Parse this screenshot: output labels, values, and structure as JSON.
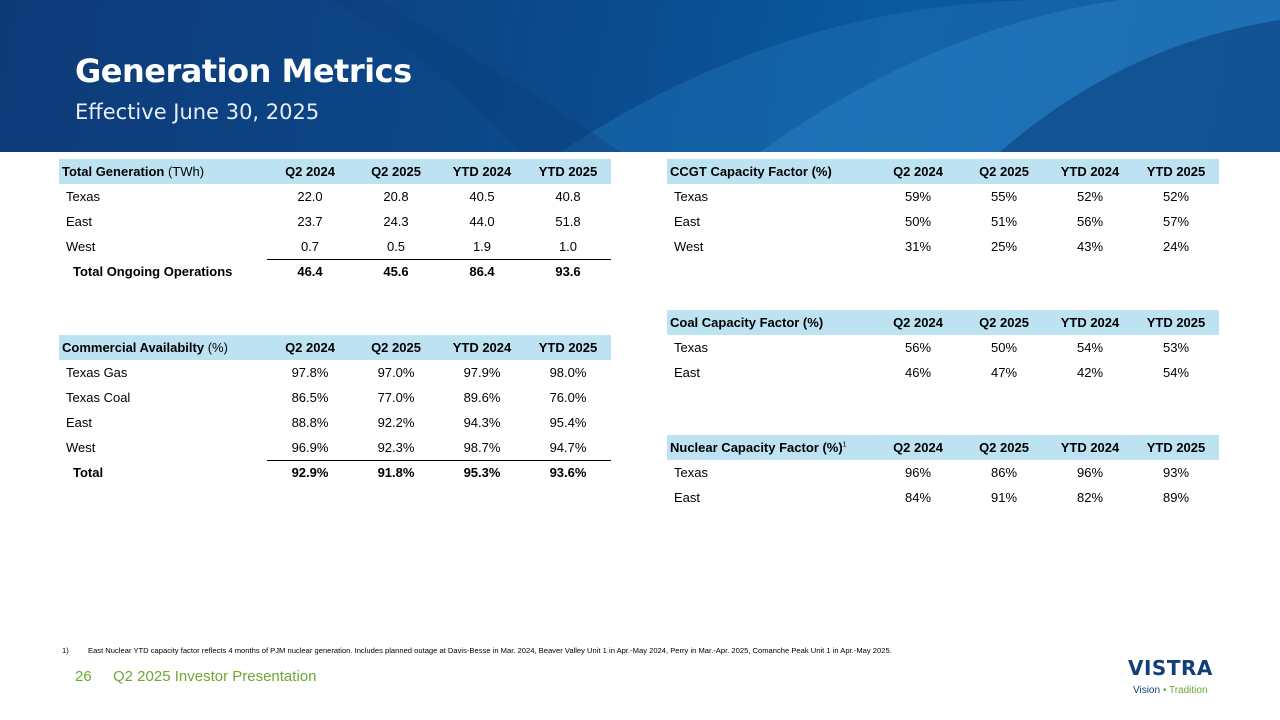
{
  "header": {
    "title": "Generation Metrics",
    "subtitle": "Effective June 30, 2025"
  },
  "columns": [
    "Q2 2024",
    "Q2 2025",
    "YTD 2024",
    "YTD 2025"
  ],
  "total_generation": {
    "title": "Total Generation",
    "unit": "(TWh)",
    "rows": [
      {
        "label": "Texas",
        "values": [
          "22.0",
          "20.8",
          "40.5",
          "40.8"
        ]
      },
      {
        "label": "East",
        "values": [
          "23.7",
          "24.3",
          "44.0",
          "51.8"
        ]
      },
      {
        "label": "West",
        "values": [
          "0.7",
          "0.5",
          "1.9",
          "1.0"
        ]
      }
    ],
    "total": {
      "label": "Total  Ongoing Operations",
      "values": [
        "46.4",
        "45.6",
        "86.4",
        "93.6"
      ]
    }
  },
  "commercial_availability": {
    "title": "Commercial Availabilty",
    "unit": "(%)",
    "rows": [
      {
        "label": "Texas Gas",
        "values": [
          "97.8%",
          "97.0%",
          "97.9%",
          "98.0%"
        ]
      },
      {
        "label": "Texas Coal",
        "values": [
          "86.5%",
          "77.0%",
          "89.6%",
          "76.0%"
        ]
      },
      {
        "label": "East",
        "values": [
          "88.8%",
          "92.2%",
          "94.3%",
          "95.4%"
        ]
      },
      {
        "label": "West",
        "values": [
          "96.9%",
          "92.3%",
          "98.7%",
          "94.7%"
        ]
      }
    ],
    "total": {
      "label": "Total",
      "values": [
        "92.9%",
        "91.8%",
        "95.3%",
        "93.6%"
      ]
    }
  },
  "ccgt_capacity_factor": {
    "title": "CCGT Capacity Factor (%)",
    "rows": [
      {
        "label": "Texas",
        "values": [
          "59%",
          "55%",
          "52%",
          "52%"
        ]
      },
      {
        "label": "East",
        "values": [
          "50%",
          "51%",
          "56%",
          "57%"
        ]
      },
      {
        "label": "West",
        "values": [
          "31%",
          "25%",
          "43%",
          "24%"
        ]
      }
    ]
  },
  "coal_capacity_factor": {
    "title": "Coal Capacity Factor (%)",
    "rows": [
      {
        "label": "Texas",
        "values": [
          "56%",
          "50%",
          "54%",
          "53%"
        ]
      },
      {
        "label": "East",
        "values": [
          "46%",
          "47%",
          "42%",
          "54%"
        ]
      }
    ]
  },
  "nuclear_capacity_factor": {
    "title": "Nuclear Capacity Factor (%)",
    "footnote_ref": "1",
    "rows": [
      {
        "label": "Texas",
        "values": [
          "96%",
          "86%",
          "96%",
          "93%"
        ]
      },
      {
        "label": "East",
        "values": [
          "84%",
          "91%",
          "82%",
          "89%"
        ]
      }
    ]
  },
  "footnote": {
    "number": "1)",
    "text": "East Nuclear YTD capacity factor reflects 4 months of PJM nuclear generation. Includes planned outage at Davis-Besse in Mar. 2024, Beaver Valley Unit 1 in Apr.-May 2024, Perry in Mar.-Apr. 2025, Comanche Peak Unit 1 in Apr.-May  2025."
  },
  "footer": {
    "page_number": "26",
    "presentation": "Q2 2025 Investor Presentation"
  },
  "logo": {
    "word": "VISTRA",
    "tag_vision": "Vision",
    "tag_dot": "•",
    "tag_tradition": "Tradition"
  },
  "colors": {
    "banner": "#0b4a8c",
    "header_fill": "#bde3f3",
    "accent_green": "#6aa832",
    "logo_blue": "#123f7a"
  }
}
